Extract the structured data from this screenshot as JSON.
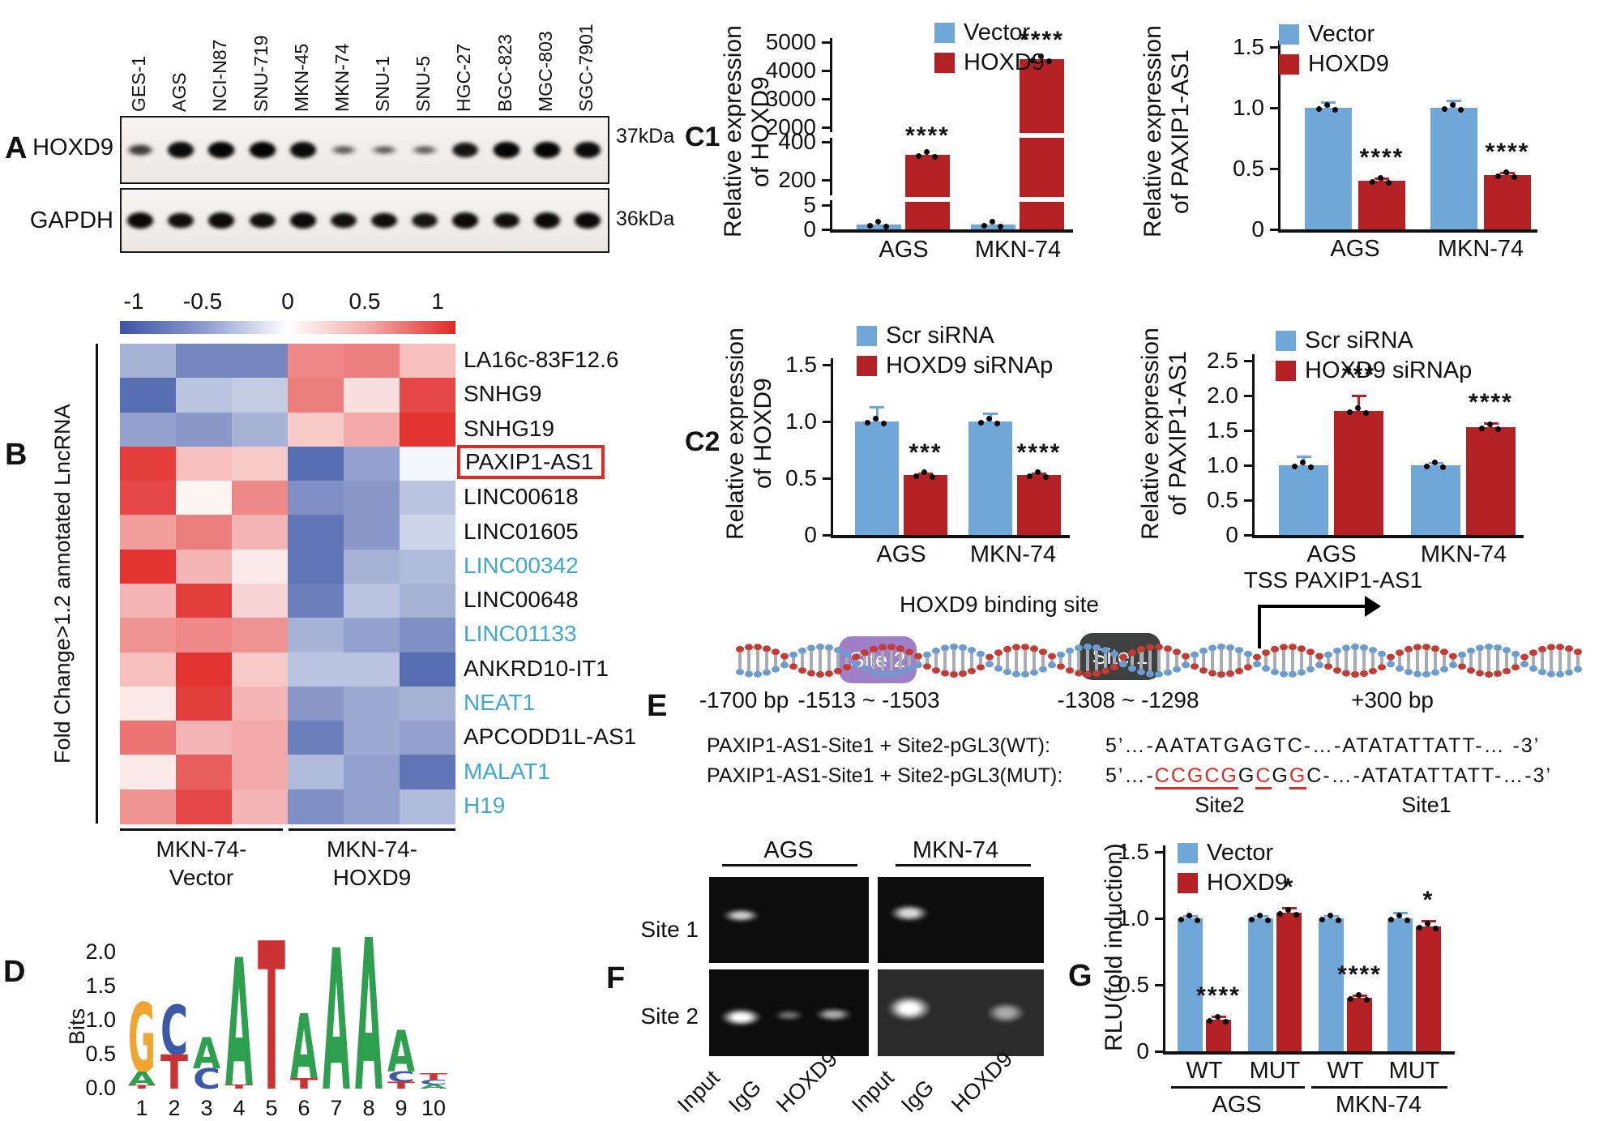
{
  "colors": {
    "bar_blue": "#6FA8D8",
    "bar_red": "#B42125",
    "heat_blue": "#3B54A5",
    "heat_red": "#E02826",
    "lnc_blue": "#3FA8D2",
    "highlight_red": "#D92D27",
    "site2_purple": "#9F7FC8",
    "site1_dark": "#3F4040",
    "helix_red": "#C53B33",
    "helix_blue": "#6B9CD0"
  },
  "panels": {
    "a": {
      "label": "A",
      "cell_lines": [
        "GES-1",
        "AGS",
        "NCI-N87",
        "SNU-719",
        "MKN-45",
        "MKN-74",
        "SNU-1",
        "SNU-5",
        "HGC-27",
        "BGC-823",
        "MGC-803",
        "SGC-7901"
      ],
      "rows": [
        {
          "name": "HOXD9",
          "kda": "37kDa",
          "bands": [
            0.45,
            0.95,
            1,
            1,
            0.95,
            0.15,
            0.1,
            0.12,
            0.85,
            1,
            1,
            0.95
          ]
        },
        {
          "name": "GAPDH",
          "kda": "36kDa",
          "bands": [
            0.95,
            0.9,
            0.95,
            0.92,
            0.95,
            0.88,
            0.9,
            0.85,
            0.95,
            0.92,
            0.95,
            0.95
          ]
        }
      ]
    },
    "b": {
      "label": "B",
      "axis_label": "Fold Change>1.2 annotated LncRNA"
    },
    "c1": {
      "label": "C1"
    },
    "c2": {
      "label": "C2"
    },
    "d": {
      "label": "D"
    },
    "e": {
      "label": "E",
      "binding_site": "HOXD9 binding site",
      "site2": "Site 2",
      "site1": "Site 1",
      "pos_labels": [
        "-1700 bp",
        "-1513 ~ -1503",
        "-1308 ~ -1298",
        "+300 bp"
      ],
      "tss": "TSS PAXIP1-AS1",
      "seq_wt_label": "PAXIP1-AS1-Site1 + Site2-pGL3(WT):",
      "seq_wt": "5’…-AATATGAGTC-…-ATATATTATT-… -3’",
      "seq_mut_label": "PAXIP1-AS1-Site1 + Site2-pGL3(MUT):",
      "seq_mut_parts": [
        {
          "t": "5’…-"
        },
        {
          "t": "CCGCG",
          "red": true,
          "u": true
        },
        {
          "t": "G"
        },
        {
          "t": "C",
          "red": true,
          "u": true
        },
        {
          "t": "G"
        },
        {
          "t": "G",
          "red": true,
          "u": true
        },
        {
          "t": "C-…-ATATATTATT-…-3’"
        }
      ],
      "site_under_labels": [
        "Site2",
        "Site1"
      ]
    },
    "f": {
      "label": "F",
      "col_headers": [
        "AGS",
        "MKN-74"
      ],
      "row_labels": [
        "Site 1",
        "Site 2"
      ],
      "lanes": [
        "Input",
        "IgG",
        "HOXD9"
      ],
      "gels": [
        {
          "site": "Site 1",
          "cell": "AGS",
          "bg": "dark",
          "bands": [
            [
              0.2,
              0.45,
              0.3,
              0.2,
              0.8
            ]
          ]
        },
        {
          "site": "Site 1",
          "cell": "MKN-74",
          "bg": "dark",
          "bands": [
            [
              0.19,
              0.42,
              0.3,
              0.26,
              0.85
            ]
          ]
        },
        {
          "site": "Site 2",
          "cell": "AGS",
          "bg": "dark",
          "bands": [
            [
              0.2,
              0.55,
              0.33,
              0.26,
              1
            ],
            [
              0.5,
              0.53,
              0.24,
              0.16,
              0.42
            ],
            [
              0.78,
              0.52,
              0.3,
              0.2,
              0.65
            ]
          ]
        },
        {
          "site": "Site 2",
          "cell": "MKN-74",
          "bg": "light",
          "bands": [
            [
              0.19,
              0.45,
              0.34,
              0.38,
              1
            ],
            [
              0.77,
              0.5,
              0.3,
              0.3,
              0.6
            ]
          ]
        }
      ]
    },
    "g": {
      "label": "G"
    }
  },
  "chart_data": [
    {
      "id": "c1_hoxd9_overexpression",
      "type": "bar",
      "broken_axis": true,
      "ylabel_lines": [
        "Relative expression",
        "of HOXD9"
      ],
      "segments": [
        {
          "ticks": [
            "0",
            "5"
          ],
          "values": [
            0,
            5
          ]
        },
        {
          "ticks": [
            "200",
            "400"
          ],
          "values": [
            200,
            400
          ]
        },
        {
          "ticks": [
            "2000",
            "3000",
            "4000",
            "5000"
          ],
          "values": [
            2000,
            3000,
            4000,
            5000
          ]
        }
      ],
      "categories": [
        "AGS",
        "MKN-74"
      ],
      "series": [
        {
          "name": "Vector",
          "values": [
            1,
            1
          ]
        },
        {
          "name": "HOXD9",
          "values": [
            330,
            4400
          ]
        }
      ],
      "sig": [
        "****",
        "****"
      ],
      "legend": [
        "Vector",
        "HOXD9"
      ]
    },
    {
      "id": "c1_paxip1as1_expression",
      "type": "bar",
      "ylabel_lines": [
        "Relative expression",
        "of PAXIP1-AS1"
      ],
      "ylim": [
        0,
        1.5
      ],
      "yticks": [
        "0",
        "0.5",
        "1.0",
        "1.5"
      ],
      "categories": [
        "AGS",
        "MKN-74"
      ],
      "series": [
        {
          "name": "Vector",
          "values": [
            1.0,
            1.0
          ],
          "err": [
            0.05,
            0.06
          ]
        },
        {
          "name": "HOXD9",
          "values": [
            0.4,
            0.45
          ],
          "err": [
            0.02,
            0.02
          ]
        }
      ],
      "sig": [
        "****",
        "****"
      ],
      "legend": [
        "Vector",
        "HOXD9"
      ]
    },
    {
      "id": "c2_hoxd9_knockdown",
      "type": "bar",
      "ylabel_lines": [
        "Relative expression",
        "of HOXD9"
      ],
      "ylim": [
        0,
        1.5
      ],
      "yticks": [
        "0",
        "0.5",
        "1.0",
        "1.5"
      ],
      "categories": [
        "AGS",
        "MKN-74"
      ],
      "series": [
        {
          "name": "Scr siRNA",
          "values": [
            1.0,
            1.0
          ],
          "err": [
            0.13,
            0.07
          ]
        },
        {
          "name": "HOXD9 siRNAp",
          "values": [
            0.53,
            0.53
          ],
          "err": [
            0.01,
            0.01
          ]
        }
      ],
      "sig": [
        "***",
        "****"
      ],
      "legend": [
        "Scr siRNA",
        "HOXD9 siRNAp"
      ]
    },
    {
      "id": "c2_paxip1as1_knockdown",
      "type": "bar",
      "ylabel_lines": [
        "Relative expression",
        "of PAXIP1-AS1"
      ],
      "ylim": [
        0,
        2.5
      ],
      "yticks": [
        "0",
        "0.5",
        "1.0",
        "1.5",
        "2.0",
        "2.5"
      ],
      "categories": [
        "AGS",
        "MKN-74"
      ],
      "series": [
        {
          "name": "Scr siRNA",
          "values": [
            1.0,
            1.0
          ],
          "err": [
            0.13,
            0.04
          ]
        },
        {
          "name": "HOXD9 siRNAp",
          "values": [
            1.78,
            1.55
          ],
          "err": [
            0.22,
            0.06
          ]
        }
      ],
      "sig": [
        "***",
        "****"
      ],
      "legend": [
        "Scr siRNA",
        "HOXD9 siRNAp"
      ]
    },
    {
      "id": "g_luciferase_reporter",
      "type": "bar",
      "ylabel": "RLU(fold induction)",
      "ylim": [
        0,
        1.5
      ],
      "yticks": [
        "0",
        "0.5",
        "1.0",
        "1.5"
      ],
      "categories": [
        "WT",
        "MUT",
        "WT",
        "MUT"
      ],
      "group_labels": [
        "AGS",
        "MKN-74"
      ],
      "series": [
        {
          "name": "Vector",
          "values": [
            1.0,
            1.0,
            1.0,
            1.0
          ],
          "err": [
            0.02,
            0.02,
            0.02,
            0.04
          ]
        },
        {
          "name": "HOXD9",
          "values": [
            0.24,
            1.04,
            0.4,
            0.94
          ],
          "err": [
            0.02,
            0.04,
            0.02,
            0.04
          ]
        }
      ],
      "sig": [
        "****",
        "*",
        "****",
        "*"
      ],
      "legend": [
        "Vector",
        "HOXD9"
      ]
    },
    {
      "id": "lncrna_heatmap",
      "type": "heatmap",
      "colorbar_ticks": [
        "-1",
        "-0.5",
        "0",
        "0.5",
        "1"
      ],
      "column_groups": [
        {
          "lines": [
            "MKN-74-",
            "Vector"
          ],
          "cols": 3
        },
        {
          "lines": [
            "MKN-74-",
            "HOXD9"
          ],
          "cols": 3
        }
      ],
      "rows": [
        {
          "name": "LA16c-83F12.6",
          "label_color": "black",
          "highlight": false,
          "values": [
            -0.45,
            -0.7,
            -0.7,
            0.55,
            0.6,
            0.3
          ]
        },
        {
          "name": "SNHG9",
          "label_color": "black",
          "highlight": false,
          "values": [
            -0.85,
            -0.35,
            -0.3,
            0.6,
            0.15,
            0.85
          ]
        },
        {
          "name": "SNHG19",
          "label_color": "black",
          "highlight": false,
          "values": [
            -0.55,
            -0.6,
            -0.45,
            0.25,
            0.4,
            0.95
          ]
        },
        {
          "name": "PAXIP1-AS1",
          "label_color": "black",
          "highlight": true,
          "values": [
            0.9,
            0.3,
            0.25,
            -0.85,
            -0.55,
            -0.05
          ]
        },
        {
          "name": "LINC00618",
          "label_color": "black",
          "highlight": false,
          "values": [
            0.85,
            0.05,
            0.55,
            -0.65,
            -0.6,
            -0.35
          ]
        },
        {
          "name": "LINC01605",
          "label_color": "black",
          "highlight": false,
          "values": [
            0.45,
            0.6,
            0.35,
            -0.8,
            -0.6,
            -0.25
          ]
        },
        {
          "name": "LINC00342",
          "label_color": "blue",
          "highlight": false,
          "values": [
            0.95,
            0.35,
            0.1,
            -0.8,
            -0.45,
            -0.4
          ]
        },
        {
          "name": "LINC00648",
          "label_color": "black",
          "highlight": false,
          "values": [
            0.35,
            0.9,
            0.2,
            -0.75,
            -0.35,
            -0.45
          ]
        },
        {
          "name": "LINC01133",
          "label_color": "blue",
          "highlight": false,
          "values": [
            0.5,
            0.55,
            0.5,
            -0.45,
            -0.55,
            -0.65
          ]
        },
        {
          "name": "ANKRD10-IT1",
          "label_color": "black",
          "highlight": false,
          "values": [
            0.3,
            0.95,
            0.25,
            -0.35,
            -0.35,
            -0.85
          ]
        },
        {
          "name": "NEAT1",
          "label_color": "blue",
          "highlight": false,
          "values": [
            0.1,
            0.9,
            0.35,
            -0.6,
            -0.5,
            -0.45
          ]
        },
        {
          "name": "APCODD1L-AS1",
          "label_color": "black",
          "highlight": false,
          "values": [
            0.65,
            0.35,
            0.4,
            -0.75,
            -0.5,
            -0.55
          ]
        },
        {
          "name": "MALAT1",
          "label_color": "blue",
          "highlight": false,
          "values": [
            0.1,
            0.75,
            0.4,
            -0.4,
            -0.55,
            -0.8
          ]
        },
        {
          "name": "H19",
          "label_color": "blue",
          "highlight": false,
          "values": [
            0.5,
            0.85,
            0.35,
            -0.65,
            -0.55,
            -0.4
          ]
        }
      ]
    },
    {
      "id": "hoxd9_motif_logo",
      "type": "sequence-logo",
      "ylabel": "Bits",
      "yticks": [
        "2.0",
        "1.5",
        "1.0",
        "0.5",
        "0.0"
      ],
      "positions": [
        "1",
        "2",
        "3",
        "4",
        "5",
        "6",
        "7",
        "8",
        "9",
        "10"
      ],
      "letter_colors": {
        "A": "#2E9E4F",
        "C": "#3C58A8",
        "G": "#F0A530",
        "T": "#C93335"
      },
      "columns": [
        [
          [
            "G",
            1.0
          ],
          [
            "A",
            0.2
          ],
          [
            "T",
            0.05
          ]
        ],
        [
          [
            "C",
            0.72
          ],
          [
            "T",
            0.5
          ]
        ],
        [
          [
            "A",
            0.45
          ],
          [
            "C",
            0.3
          ]
        ],
        [
          [
            "A",
            1.85
          ],
          [
            "T",
            0.06
          ]
        ],
        [
          [
            "T",
            2.15
          ]
        ],
        [
          [
            "A",
            0.95
          ],
          [
            "T",
            0.15
          ]
        ],
        [
          [
            "A",
            2.05
          ]
        ],
        [
          [
            "A",
            2.2
          ]
        ],
        [
          [
            "A",
            0.6
          ],
          [
            "C",
            0.15
          ],
          [
            "T",
            0.1
          ]
        ],
        [
          [
            "T",
            0.09
          ],
          [
            "C",
            0.07
          ],
          [
            "A",
            0.06
          ]
        ]
      ]
    }
  ]
}
